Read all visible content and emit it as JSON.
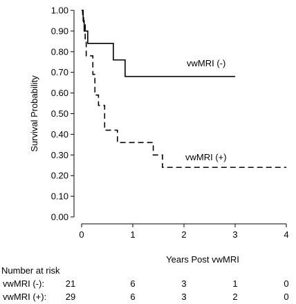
{
  "chart_data": {
    "type": "line",
    "xlabel": "Years Post vwMRI",
    "ylabel": "Survival Probability",
    "xlim": [
      0,
      4
    ],
    "ylim": [
      0,
      1
    ],
    "xticks": [
      0,
      1,
      2,
      3,
      4
    ],
    "yticks": [
      "0.00",
      "0.10",
      "0.20",
      "0.30",
      "0.40",
      "0.50",
      "0.60",
      "0.70",
      "0.80",
      "0.90",
      "1.00"
    ],
    "grid": false,
    "series": [
      {
        "name": "vwMRI (-)",
        "style": "solid",
        "color": "#000000",
        "steps": [
          [
            0,
            1.0
          ],
          [
            0.03,
            0.95
          ],
          [
            0.05,
            0.9
          ],
          [
            0.12,
            0.84
          ],
          [
            0.62,
            0.76
          ],
          [
            0.85,
            0.68
          ],
          [
            3.0,
            0.68
          ]
        ]
      },
      {
        "name": "vwMRI (+)",
        "style": "dashed",
        "color": "#000000",
        "steps": [
          [
            0,
            1.0
          ],
          [
            0.02,
            0.97
          ],
          [
            0.04,
            0.93
          ],
          [
            0.07,
            0.86
          ],
          [
            0.09,
            0.78
          ],
          [
            0.22,
            0.69
          ],
          [
            0.26,
            0.59
          ],
          [
            0.33,
            0.54
          ],
          [
            0.45,
            0.42
          ],
          [
            0.7,
            0.36
          ],
          [
            1.4,
            0.3
          ],
          [
            1.58,
            0.24
          ],
          [
            4.0,
            0.24
          ]
        ]
      }
    ]
  },
  "risk_table": {
    "title": "Number at risk",
    "rows": [
      {
        "label": "vwMRI  (-):",
        "values": [
          "21",
          "6",
          "3",
          "1",
          "0"
        ]
      },
      {
        "label": "vwMRI (+):",
        "values": [
          "29",
          "6",
          "3",
          "2",
          "0"
        ]
      }
    ]
  }
}
